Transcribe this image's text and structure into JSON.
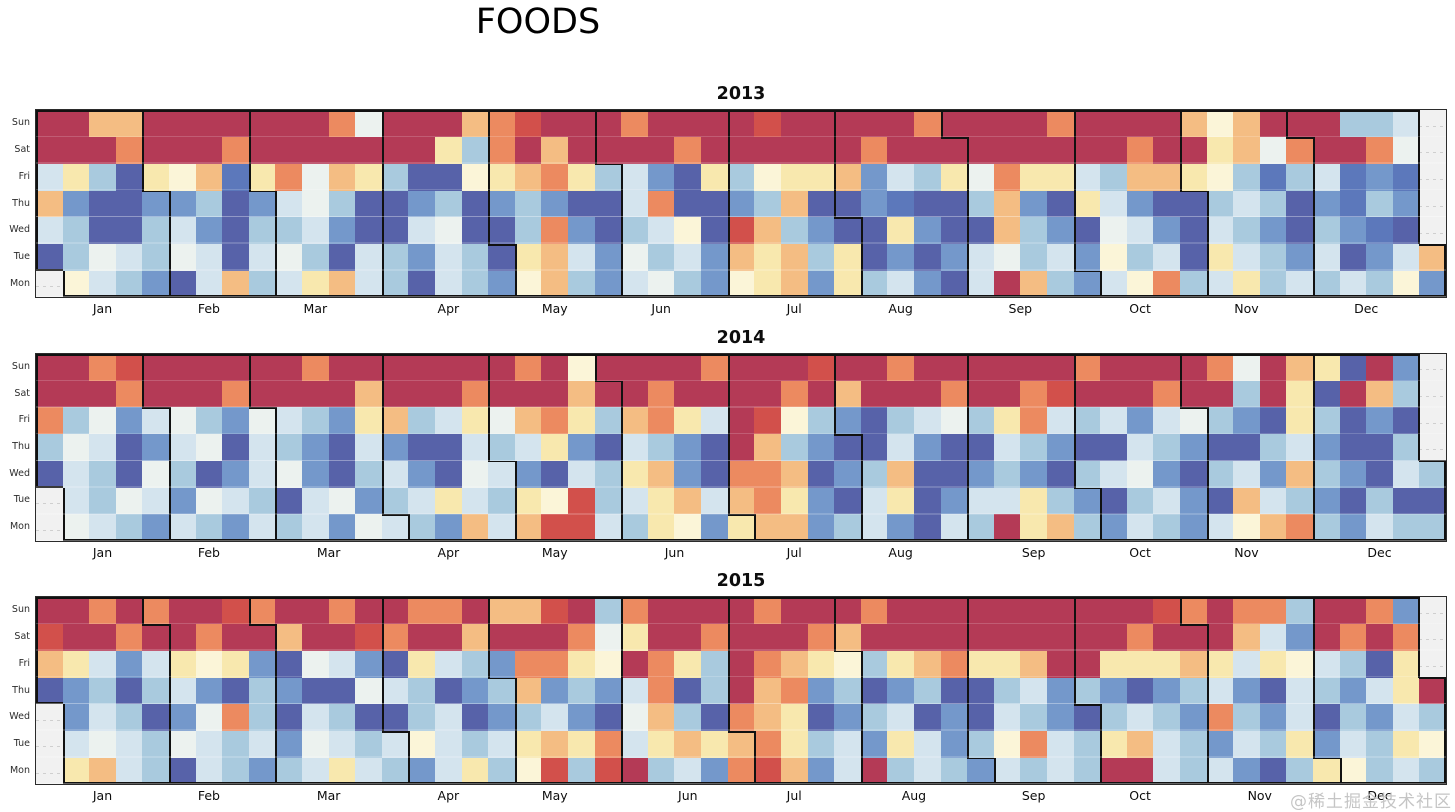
{
  "title": "FOODS",
  "watermark": "@稀土掘金技术社区",
  "day_labels": [
    "Sun",
    "Sat",
    "Fri",
    "Thu",
    "Wed",
    "Tue",
    "Mon"
  ],
  "month_labels": [
    "Jan",
    "Feb",
    "Mar",
    "Apr",
    "May",
    "Jun",
    "Jul",
    "Aug",
    "Sep",
    "Oct",
    "Nov",
    "Dec"
  ],
  "palette": {
    "R": "#b43a56",
    "r": "#d2504b",
    "s": "#ec8a60",
    "o": "#f4bd83",
    "y": "#f8e8ae",
    "c": "#fbf5d8",
    "w": "#ecf2ef",
    "L": "#d4e4ee",
    "l": "#a9cade",
    "b": "#7498cb",
    "B": "#5c78bb",
    "I": "#5762a9",
    ".": "#f1f1f1"
  },
  "chart_data": {
    "type": "heatmap",
    "title": "FOODS",
    "subtitle_years": [
      "2013",
      "2014",
      "2015"
    ],
    "layout": "calendar-heatmap; one panel per year; columns = Mon-Sun weeks (53), rows top-to-bottom = Sun,Sat,Fri,Thu,Wed,Tue,Mon; black stair-step outlines separate months; cells outside the year are empty gray with dashed line",
    "value_scale_high_to_low": [
      "R",
      "r",
      "s",
      "o",
      "y",
      "c",
      "w",
      "L",
      "l",
      "b",
      "B",
      "I"
    ],
    "value_scale_note": "R=crimson (highest sales), through orange/yellow (mid), to indigo (lowest); '.'=no data (outside year)",
    "legend": "none shown",
    "years": [
      {
        "label": "2013",
        "cells": [
          "RRooRRRRRRRswRRRosrRRRsRRRRrRRRRRsRRRRsRRRRocoRRRllL.",
          "RRRsRRRsRRRRRRRylsRoRRRRsRRRRRRsRRRRRRRRRsRRyowsRRsw.",
          "LylIycoByswoylIIcyosylLbIylcyyobLlywsyyLlooyclBlLBbB.",
          "obIIbblIbLwlIIblIblbIILsIIbloIIbBIIlobIyLbIIlLlIbBlb.",
          "LlIIlLbIllLbIILwIIlsbIlLcIrolbIIybIIolbIwLbILlbIlbBI.",
          "IlwLlwLILwlILlbLlIyoLbwlLboyolyIbIbLwlLbclLIyLlbLIbLo",
          ".cLlbILolLyoLlILlbcolbLwlbcyobylLbILRolbLcslLylLlLlcb"
        ]
      },
      {
        "label": "2014",
        "cells": [
          "RRsrRRRRRRsRRRRRRRsRcRRRRsRRRrRRsRRRRRRsRRRRswRoyIRb.",
          "RRRsRRRsRRRRoRRRsRRRoRRsRRRRsRoRRRsRRsrRRRsRRlRyIRol.",
          "slwbLwlbwLlbyolLywosylosyLRrclbIlLwlysLlLbLwlbIylIbI.",
          "lwLIbLwILlbILbIILlLybILlbIRolbIILbIILlbIILlbIIlLbIIl.",
          "ILlIwlIbLwbIlLbIwLbILlyobIssoIbloIIblbIlLwbIlLbolbILl",
          ".LlwLbwLlILwblLyLlycrlLyoLosybILyIbLLylbIlLbIoLlbIlII",
          ".wLlbLlbLlLbwLlboLorrLlycbyooblLbILlRyolbLlbLcoslbLll"
        ]
      },
      {
        "label": "2015",
        "cells": [
          "RRsRsRRrsRRsRRssRoorRlsRRRRsRRRsRRRRRRRRRRrsRsslRRsb.",
          "rRRsRRsRRoRRrsRRoRRRswyRRsRRRsoRRRRRRRRRRsRRRoLbRsRs.",
          "oyLbLycybIwLbIyLlbssycRsylRsoyclyosyyoRRyyyoyLycLlIy.",
          "IblIlLbIlbIIwLlIbloblbLsIlRosblIblIIlLblbIblLbILlbLyR",
          ".bLlIbwslILlIIlLIblLbIwolIsoyIblLIbILlbIlLlbslbLIlbLl",
          ".LwLlwLlLbwLlLcLlLyoysLyoyosylLbyLblcsLlyoLlbLlybLlyc",
          ".yoLlILlblLyLlbLylcrlrRlLbsrobLRlLlbLlLlRRLlLbIlyclLl"
        ]
      }
    ]
  },
  "panel_geometry_note": "plot area x 36-1446; panel plot tops 110 / 353.5 / 597; cell ~26.6x26.7px"
}
